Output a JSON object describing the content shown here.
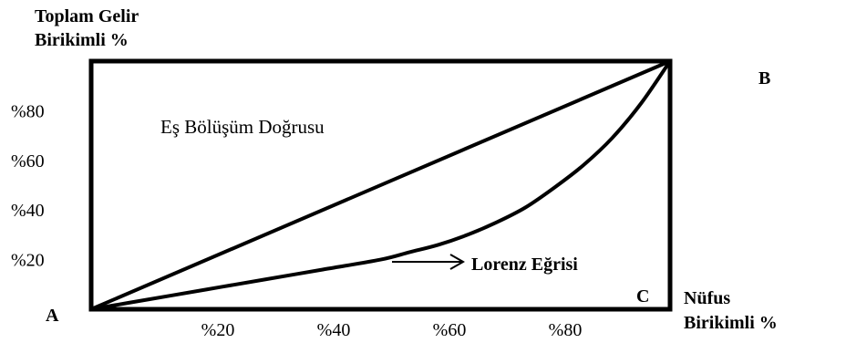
{
  "chart_data": {
    "type": "line",
    "ylabel_line1": "Toplam Gelir",
    "ylabel_line2": "Birikimli  %",
    "xlabel_line1": "Nüfus",
    "xlabel_line2": "Birikimli  %",
    "xlim": [
      0,
      100
    ],
    "ylim": [
      0,
      100
    ],
    "grid": false,
    "y_ticks": [
      {
        "value": 80,
        "label": "%80"
      },
      {
        "value": 60,
        "label": "%60"
      },
      {
        "value": 40,
        "label": "%40"
      },
      {
        "value": 20,
        "label": "%20"
      }
    ],
    "x_ticks": [
      {
        "value": 20,
        "label": "%20"
      },
      {
        "value": 40,
        "label": "%40"
      },
      {
        "value": 60,
        "label": "%60"
      },
      {
        "value": 80,
        "label": "%80"
      }
    ],
    "point_labels": {
      "A": "A",
      "B": "B",
      "C": "C"
    },
    "series": [
      {
        "name": "Eş Bölüşüm Doğrusu",
        "x": [
          0,
          100
        ],
        "y": [
          0,
          100
        ]
      },
      {
        "name": "Lorenz Eğrisi",
        "x": [
          0,
          10,
          20,
          30,
          40,
          50,
          55,
          60,
          65,
          70,
          75,
          80,
          85,
          90,
          95,
          100
        ],
        "y": [
          0,
          4,
          8,
          12,
          16,
          20,
          23,
          26,
          30,
          35,
          41,
          49,
          58,
          69,
          83,
          100
        ]
      }
    ],
    "annotations": {
      "equality_label": "Eş Bölüşüm Doğrusu",
      "lorenz_label": "Lorenz Eğrisi"
    }
  },
  "colors": {
    "ink": "#000000",
    "background": "#ffffff"
  }
}
